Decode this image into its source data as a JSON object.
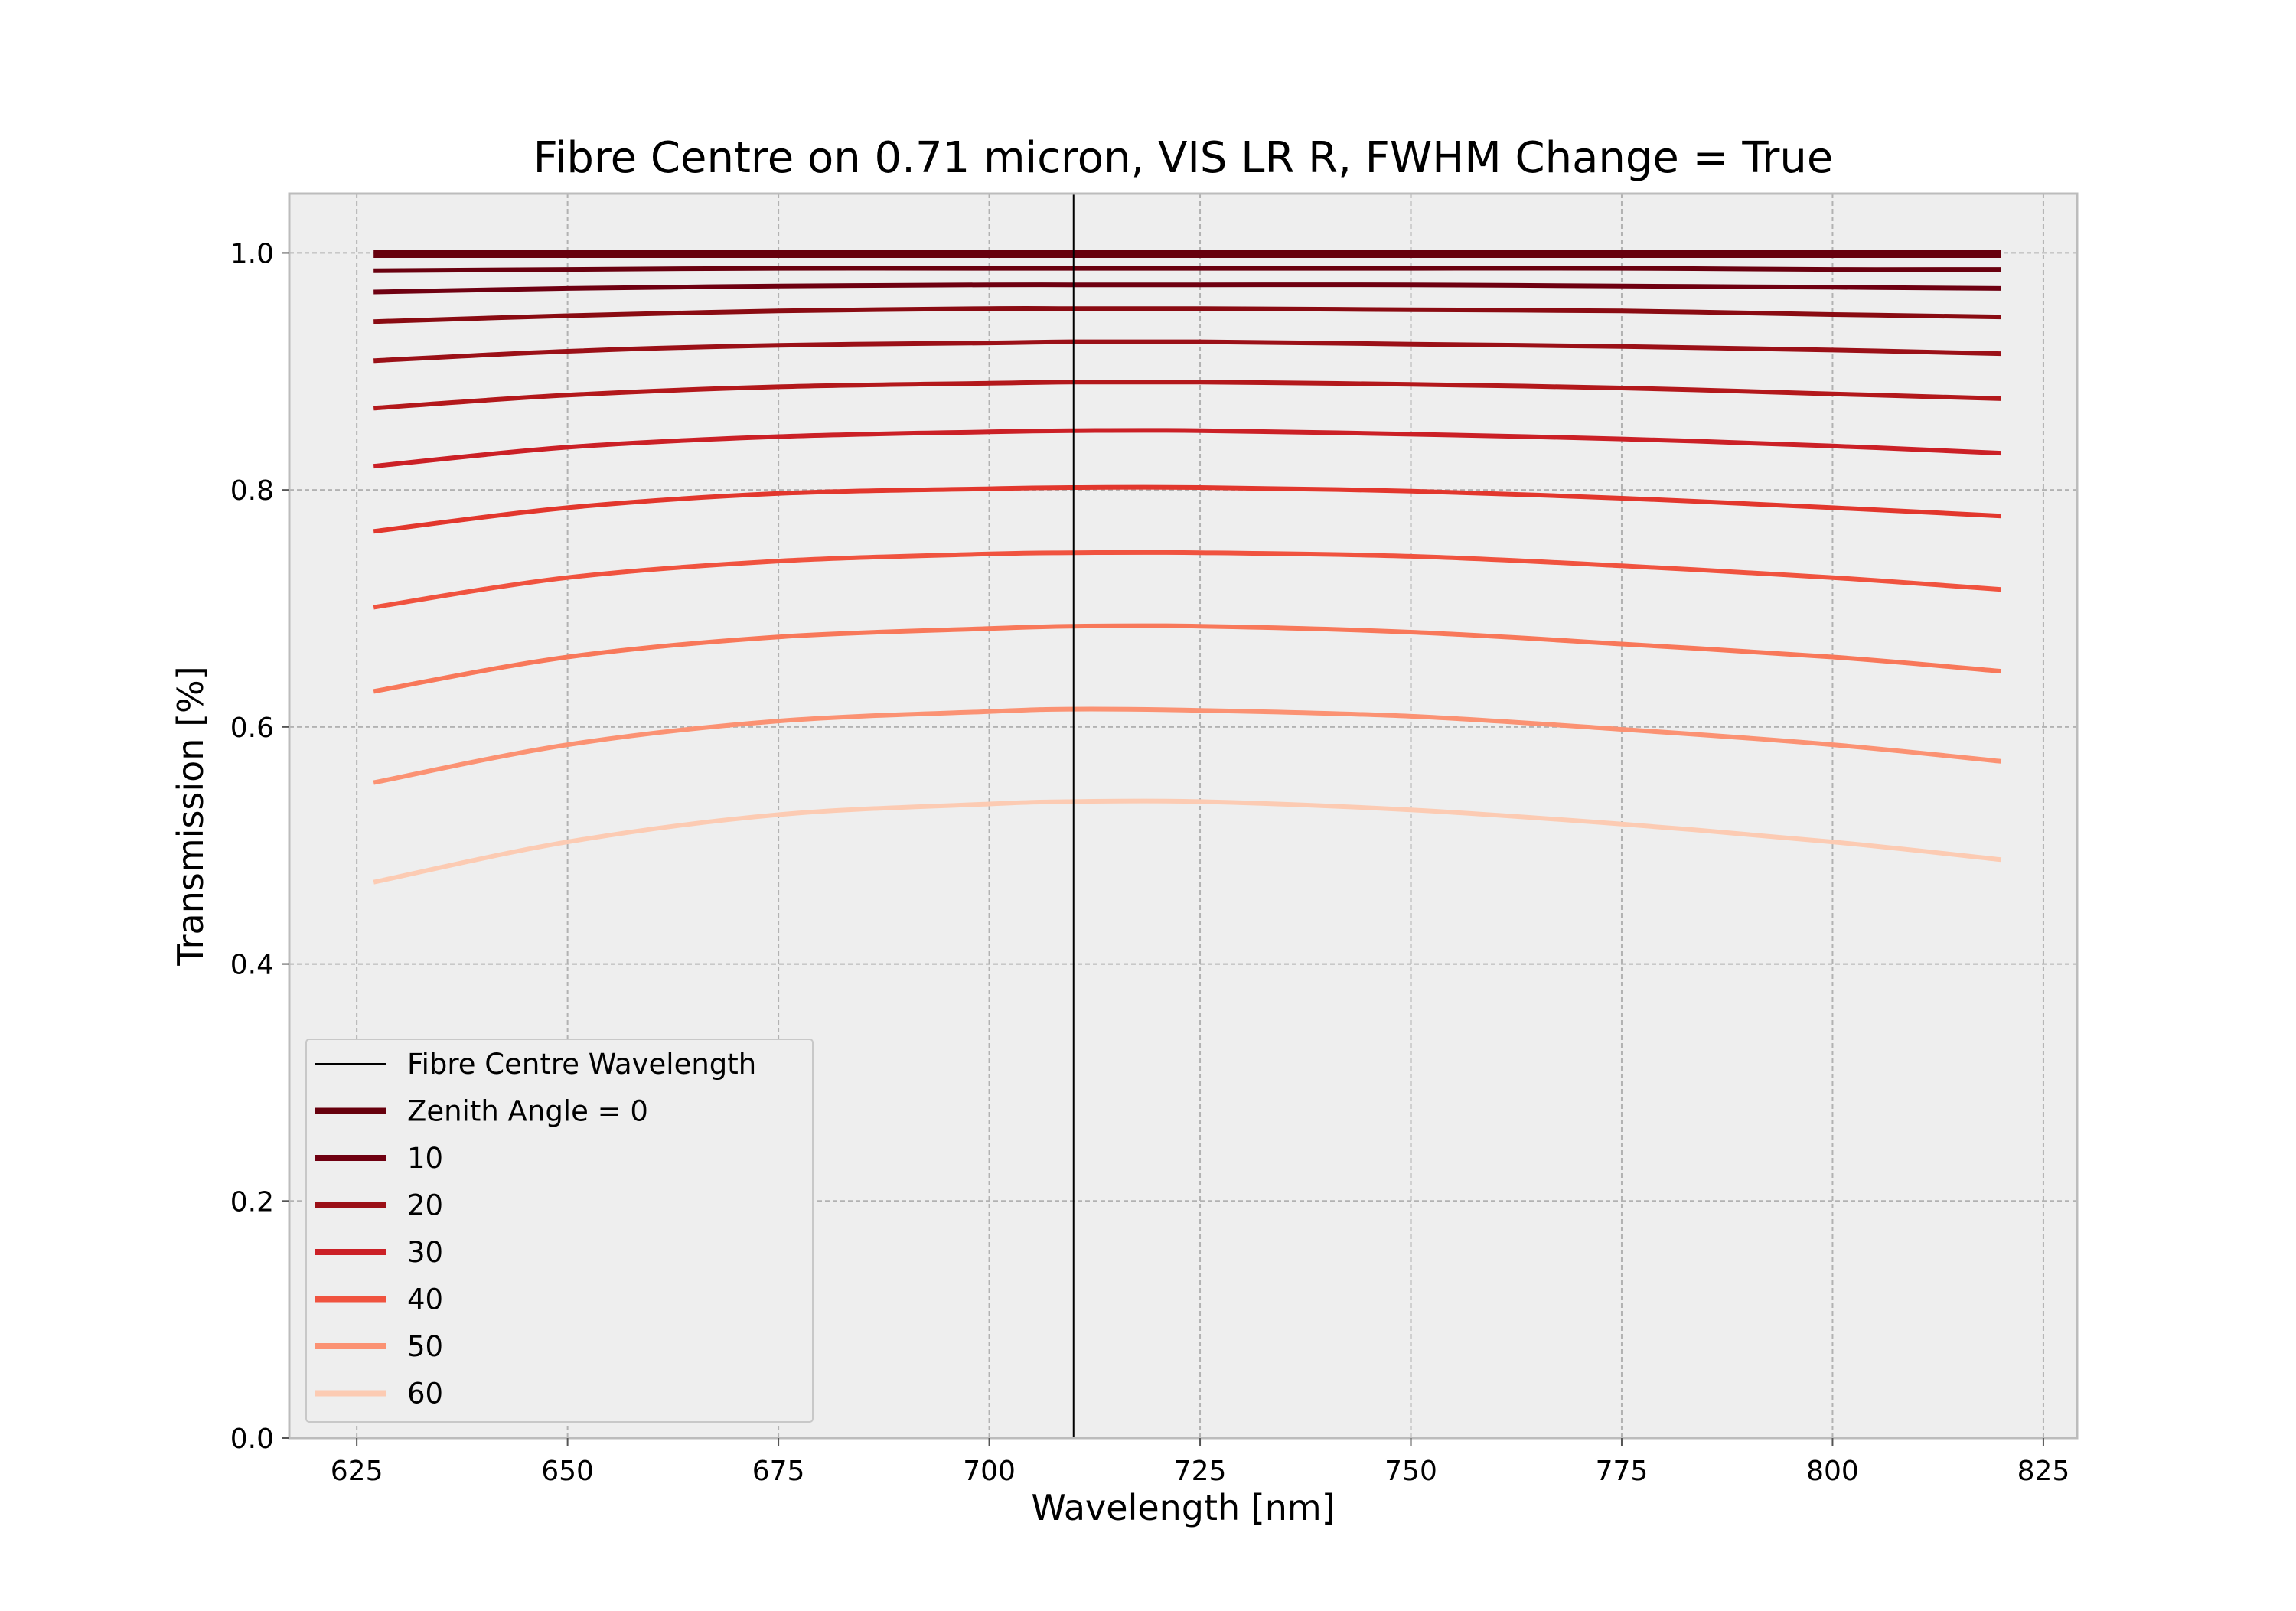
{
  "chart_data": {
    "type": "line",
    "title": "Fibre Centre on 0.71 micron, VIS LR R, FWHM Change = True",
    "xlabel": "Wavelength [nm]",
    "ylabel": "Transmission [%]",
    "xlim": [
      617,
      829
    ],
    "ylim": [
      0.0,
      1.05
    ],
    "xticks": [
      "625",
      "650",
      "675",
      "700",
      "725",
      "750",
      "775",
      "800",
      "825"
    ],
    "yticks": [
      "0.0",
      "0.2",
      "0.4",
      "0.6",
      "0.8",
      "1.0"
    ],
    "grid": true,
    "legend_position": "lower-left",
    "vertical_line": {
      "name": "Fibre Centre Wavelength",
      "x": 710,
      "color": "#000000"
    },
    "x": [
      627,
      650,
      675,
      700,
      710,
      725,
      750,
      775,
      800,
      820
    ],
    "series": [
      {
        "name": "0",
        "color": "#67000d",
        "values": [
          0.999,
          0.999,
          0.999,
          0.999,
          0.999,
          0.999,
          0.999,
          0.999,
          0.999,
          0.999
        ]
      },
      {
        "color": "#6a000f",
        "values": [
          0.985,
          0.986,
          0.987,
          0.987,
          0.987,
          0.987,
          0.987,
          0.987,
          0.986,
          0.986
        ]
      },
      {
        "name": "10",
        "color": "#6f0011",
        "values": [
          0.967,
          0.97,
          0.972,
          0.973,
          0.973,
          0.973,
          0.973,
          0.972,
          0.971,
          0.97
        ]
      },
      {
        "color": "#8a0b12",
        "values": [
          0.942,
          0.947,
          0.951,
          0.953,
          0.953,
          0.953,
          0.952,
          0.951,
          0.948,
          0.946
        ]
      },
      {
        "name": "20",
        "color": "#9b1017",
        "values": [
          0.909,
          0.917,
          0.922,
          0.924,
          0.925,
          0.925,
          0.923,
          0.921,
          0.918,
          0.915
        ]
      },
      {
        "color": "#b3181b",
        "values": [
          0.869,
          0.88,
          0.887,
          0.89,
          0.891,
          0.891,
          0.889,
          0.886,
          0.881,
          0.877
        ]
      },
      {
        "name": "30",
        "color": "#cb2026",
        "values": [
          0.82,
          0.836,
          0.845,
          0.849,
          0.85,
          0.85,
          0.847,
          0.843,
          0.837,
          0.831
        ]
      },
      {
        "color": "#e2372d",
        "values": [
          0.765,
          0.785,
          0.797,
          0.801,
          0.802,
          0.802,
          0.799,
          0.793,
          0.785,
          0.778
        ]
      },
      {
        "name": "40",
        "color": "#f0533f",
        "values": [
          0.701,
          0.726,
          0.74,
          0.746,
          0.747,
          0.747,
          0.744,
          0.736,
          0.726,
          0.716
        ]
      },
      {
        "color": "#f8785a",
        "values": [
          0.63,
          0.659,
          0.676,
          0.683,
          0.685,
          0.685,
          0.68,
          0.67,
          0.659,
          0.647
        ]
      },
      {
        "name": "50",
        "color": "#fb9273",
        "values": [
          0.553,
          0.585,
          0.605,
          0.613,
          0.615,
          0.614,
          0.609,
          0.598,
          0.585,
          0.571
        ]
      },
      {
        "name": "60",
        "color": "#fccbb3",
        "values": [
          0.469,
          0.503,
          0.526,
          0.535,
          0.537,
          0.537,
          0.53,
          0.518,
          0.503,
          0.488
        ]
      }
    ],
    "legend": {
      "first_label": "Fibre Centre Wavelength",
      "zenith_label": "Zenith Angle =  0",
      "entries": [
        "10",
        "20",
        "30",
        "40",
        "50",
        "60"
      ]
    }
  },
  "colors": {
    "plot_background": "#eeeeee",
    "grid": "#b2b2b2",
    "frame": "#bcbcbc",
    "figure_background": "#ffffff"
  }
}
